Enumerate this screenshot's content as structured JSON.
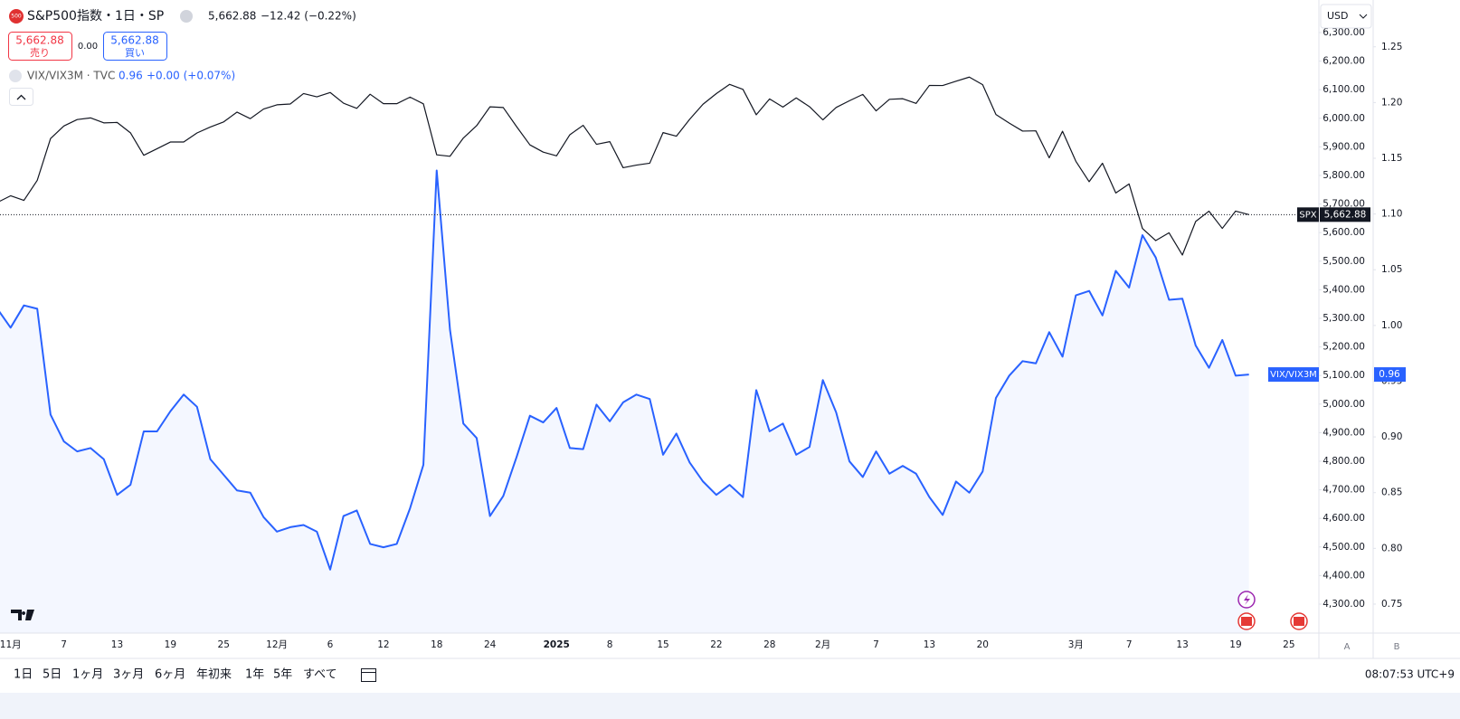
{
  "header": {
    "symbol": "S&P500指数・1日・SP",
    "last": "5,662.88",
    "change": "−12.42 (−0.22%)",
    "sell_price": "5,662.88",
    "sell": "売り",
    "spread": "0.00",
    "buy_price": "5,662.88",
    "buy": "買い",
    "overlay_symbol": "VIX/VIX3M · TVC",
    "overlay_last": "0.96",
    "overlay_change": "+0.00 (+0.07%)"
  },
  "chart_data": {
    "type": "line",
    "categories": [
      null,
      "11月",
      null,
      null,
      null,
      "7",
      null,
      null,
      null,
      "13",
      null,
      null,
      null,
      "19",
      null,
      null,
      null,
      "25",
      null,
      null,
      null,
      "12月",
      null,
      null,
      null,
      "6",
      null,
      null,
      null,
      "12",
      null,
      null,
      null,
      "18",
      null,
      null,
      null,
      "24",
      null,
      null,
      null,
      null,
      "2025",
      null,
      null,
      null,
      "8",
      null,
      null,
      null,
      "15",
      null,
      null,
      null,
      "22",
      null,
      null,
      null,
      "28",
      null,
      null,
      null,
      "2月",
      null,
      null,
      null,
      "7",
      null,
      null,
      null,
      "13",
      null,
      null,
      null,
      "20",
      null,
      null,
      null,
      null,
      null,
      null,
      "3月",
      null,
      null,
      null,
      "7",
      null,
      null,
      null,
      "13",
      null,
      null,
      null,
      "19",
      null,
      null,
      null,
      "25"
    ],
    "series": [
      {
        "name": "SPX",
        "color": "#131722",
        "last_label": "5,662.88",
        "values": [
          5705.45,
          5728.8,
          5712.69,
          5782.76,
          5929.04,
          5973.1,
          5995.54,
          6001.35,
          5983.99,
          5985.38,
          5949.17,
          5870.62,
          5893.62,
          5916.98,
          5917.11,
          5948.71,
          5969.34,
          5987.37,
          6021.63,
          5998.74,
          6032.38,
          6047.15,
          6049.88,
          6086.49,
          6075.11,
          6090.27,
          6052.85,
          6034.91,
          6084.19,
          6051.25,
          6051.09,
          6074.08,
          6050.61,
          5872.16,
          5867.08,
          5930.85,
          5974.07,
          6040.04,
          6037.59,
          5970.84,
          5906.94,
          5881.63,
          5868.55,
          5942.47,
          5975.38,
          5909.03,
          5918.25,
          5827.04,
          5836.22,
          5842.91,
          5949.91,
          5937.34,
          5996.66,
          6049.24,
          6086.37,
          6118.71,
          6101.24,
          6012.28,
          6067.7,
          6039.31,
          6071.17,
          6040.53,
          5994.57,
          6037.88,
          6061.48,
          6083.57,
          6025.99,
          6066.44,
          6068.5,
          6051.97,
          6115.07,
          6114.63,
          6129.58,
          6144.15,
          6117.52,
          6013.13,
          5983.25,
          5955.25,
          5956.06,
          5861.57,
          5954.5,
          5849.72,
          5778.15,
          5842.63,
          5738.52,
          5770.2,
          5614.56,
          5572.07,
          5599.3,
          5521.52,
          5638.94,
          5675.12,
          5614.66,
          5675.29,
          5662.88,
          null,
          null,
          null
        ]
      },
      {
        "name": "VIX/VIX3M",
        "color": "#2962ff",
        "axis": "y2",
        "area": true,
        "last_label": "0.96",
        "values": [
          1.015,
          0.998,
          1.018,
          1.015,
          0.92,
          0.896,
          0.887,
          0.89,
          0.88,
          0.848,
          0.857,
          0.905,
          0.905,
          0.923,
          0.938,
          0.927,
          0.88,
          0.866,
          0.852,
          0.85,
          0.828,
          0.815,
          0.819,
          0.821,
          0.815,
          0.781,
          0.829,
          0.834,
          0.804,
          0.801,
          0.804,
          0.836,
          0.875,
          1.139,
          0.996,
          0.912,
          0.899,
          0.829,
          0.847,
          0.882,
          0.919,
          0.913,
          0.926,
          0.89,
          0.889,
          0.929,
          0.914,
          0.931,
          0.938,
          0.934,
          0.884,
          0.903,
          0.877,
          0.86,
          0.848,
          0.857,
          0.846,
          0.942,
          0.905,
          0.912,
          0.884,
          0.891,
          0.951,
          0.922,
          0.878,
          0.864,
          0.887,
          0.867,
          0.874,
          0.867,
          0.846,
          0.83,
          0.86,
          0.85,
          0.869,
          0.935,
          0.955,
          0.968,
          0.966,
          0.994,
          0.972,
          1.027,
          1.031,
          1.009,
          1.049,
          1.034,
          1.081,
          1.061,
          1.023,
          1.024,
          0.982,
          0.962,
          0.987,
          0.955,
          0.956,
          null,
          null,
          null
        ]
      }
    ],
    "ylim": [
      4198.7,
      6413.9
    ],
    "yticks": [
      {
        "value": 4300,
        "label": "4,300.00"
      },
      {
        "value": 4400,
        "label": "4,400.00"
      },
      {
        "value": 4500,
        "label": "4,500.00"
      },
      {
        "value": 4600,
        "label": "4,600.00"
      },
      {
        "value": 4700,
        "label": "4,700.00"
      },
      {
        "value": 4800,
        "label": "4,800.00"
      },
      {
        "value": 4900,
        "label": "4,900.00"
      },
      {
        "value": 5000,
        "label": "5,000.00"
      },
      {
        "value": 5100,
        "label": "5,100.00"
      },
      {
        "value": 5200,
        "label": "5,200.00"
      },
      {
        "value": 5300,
        "label": "5,300.00"
      },
      {
        "value": 5400,
        "label": "5,400.00"
      },
      {
        "value": 5500,
        "label": "5,500.00"
      },
      {
        "value": 5600,
        "label": "5,600.00"
      },
      {
        "value": 5700,
        "label": "5,700.00"
      },
      {
        "value": 5800,
        "label": "5,800.00"
      },
      {
        "value": 5900,
        "label": "5,900.00"
      },
      {
        "value": 6000,
        "label": "6,000.00"
      },
      {
        "value": 6100,
        "label": "6,100.00"
      },
      {
        "value": 6200,
        "label": "6,200.00"
      },
      {
        "value": 6300,
        "label": "6,300.00"
      }
    ],
    "y2lim": [
      0.724,
      1.292
    ],
    "y2ticks": [
      0.75,
      {
        "value": 0.8,
        "label": "0.80"
      },
      0.85,
      {
        "value": 0.9,
        "label": "0.90"
      },
      0.95,
      {
        "value": 1.0,
        "label": "1.00"
      },
      1.05,
      {
        "value": 1.1,
        "label": "1.10"
      },
      1.15,
      {
        "value": 1.2,
        "label": "1.20"
      },
      1.25
    ],
    "currency": "USD",
    "scale_buttons": [
      "A",
      "B"
    ]
  },
  "toolbar": {
    "ranges": [
      "1日",
      "5日",
      "1ヶ月",
      "3ヶ月",
      "6ヶ月",
      "年初来",
      "1年",
      "5年",
      "すべて"
    ],
    "clock": "08:07:53 UTC+9"
  }
}
